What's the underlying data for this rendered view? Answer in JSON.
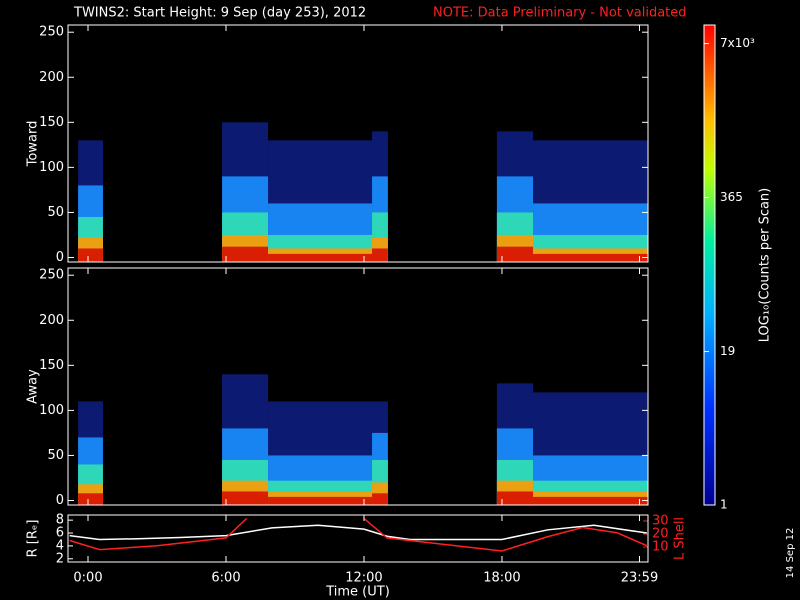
{
  "title": "TWINS2: Start Height:  9 Sep (day 253), 2012",
  "note": "NOTE: Data Preliminary - Not validated",
  "date_stamp": "14 Sep 12",
  "colorbar": {
    "label": "LOG₁₀(Counts per Scan)",
    "log": true,
    "clim": [
      1,
      10000
    ],
    "ticks": [
      1,
      19,
      365,
      {
        "value": 7000,
        "label": "7x10³"
      }
    ]
  },
  "chart_data": [
    {
      "type": "spectrogram",
      "ylabel": "Toward",
      "xlim": [
        -0.87,
        24.35
      ],
      "ylim": [
        -5,
        258
      ],
      "yticks": [
        0,
        50,
        100,
        150,
        200,
        250
      ],
      "band_colors": [
        "#d81000",
        "#ff9a00",
        "#30e0b0",
        "#1890ff",
        "#1830d0"
      ],
      "bursts": [
        {
          "start": -0.43,
          "end": 0.65,
          "bands": [
            10,
            22,
            45,
            80,
            130
          ]
        },
        {
          "start": 5.83,
          "end": 7.83,
          "bands": [
            12,
            25,
            50,
            90,
            150
          ]
        },
        {
          "start": 7.83,
          "end": 12.35,
          "bands": [
            4,
            10,
            25,
            60,
            130
          ]
        },
        {
          "start": 12.35,
          "end": 13.04,
          "bands": [
            10,
            22,
            50,
            90,
            140
          ]
        },
        {
          "start": 17.78,
          "end": 19.35,
          "bands": [
            12,
            25,
            50,
            90,
            140
          ]
        },
        {
          "start": 19.35,
          "end": 24.35,
          "bands": [
            4,
            10,
            25,
            60,
            130
          ]
        }
      ]
    },
    {
      "type": "spectrogram",
      "ylabel": "Away",
      "xlim": [
        -0.87,
        24.35
      ],
      "ylim": [
        -5,
        258
      ],
      "yticks": [
        0,
        50,
        100,
        150,
        200,
        250
      ],
      "band_colors": [
        "#d81000",
        "#ff9a00",
        "#30e0b0",
        "#1890ff",
        "#1830d0"
      ],
      "bursts": [
        {
          "start": -0.43,
          "end": 0.65,
          "bands": [
            8,
            18,
            40,
            70,
            110
          ]
        },
        {
          "start": 5.83,
          "end": 7.83,
          "bands": [
            10,
            22,
            45,
            80,
            140
          ]
        },
        {
          "start": 7.83,
          "end": 12.35,
          "bands": [
            4,
            10,
            22,
            50,
            110
          ]
        },
        {
          "start": 12.35,
          "end": 13.04,
          "bands": [
            8,
            20,
            45,
            75,
            110
          ]
        },
        {
          "start": 17.78,
          "end": 19.35,
          "bands": [
            10,
            22,
            45,
            80,
            130
          ]
        },
        {
          "start": 19.35,
          "end": 24.35,
          "bands": [
            4,
            10,
            22,
            50,
            120
          ]
        }
      ]
    },
    {
      "type": "line",
      "ylabel": "R [Rₑ]",
      "y2label": "L Shell",
      "xlabel": "Time (UT)",
      "xlim": [
        -0.87,
        24.35
      ],
      "ylim": [
        1.5,
        8.8
      ],
      "yticks": [
        2,
        4,
        6,
        8
      ],
      "y2lim": [
        -1.5,
        34.6
      ],
      "y2ticks": [
        10,
        20,
        30
      ],
      "xticks": [
        {
          "value": 0,
          "label": "0:00"
        },
        {
          "value": 6,
          "label": "6:00"
        },
        {
          "value": 12,
          "label": "12:00"
        },
        {
          "value": 18,
          "label": "18:00"
        },
        {
          "value": 23.98,
          "label": "23:59"
        }
      ],
      "series": [
        {
          "color": "#ffffff",
          "x": [
            -0.8,
            0.5,
            2,
            4,
            6,
            8,
            10,
            12,
            13,
            14,
            16,
            18,
            20,
            22,
            24.3
          ],
          "values": [
            5.6,
            5.0,
            5.1,
            5.3,
            5.6,
            6.8,
            7.2,
            6.6,
            5.5,
            5.0,
            5.0,
            5.0,
            6.5,
            7.2,
            6.0
          ]
        },
        {
          "color": "#ff2020",
          "axis": "y2",
          "x": [
            -0.8,
            0.5,
            3,
            6,
            6.9,
            9,
            12,
            13,
            15,
            18,
            20,
            21.5,
            23,
            24.3
          ],
          "values": [
            15,
            8,
            11,
            17,
            32,
            null,
            32,
            17,
            13,
            7,
            18,
            25,
            21,
            11
          ]
        }
      ]
    }
  ]
}
